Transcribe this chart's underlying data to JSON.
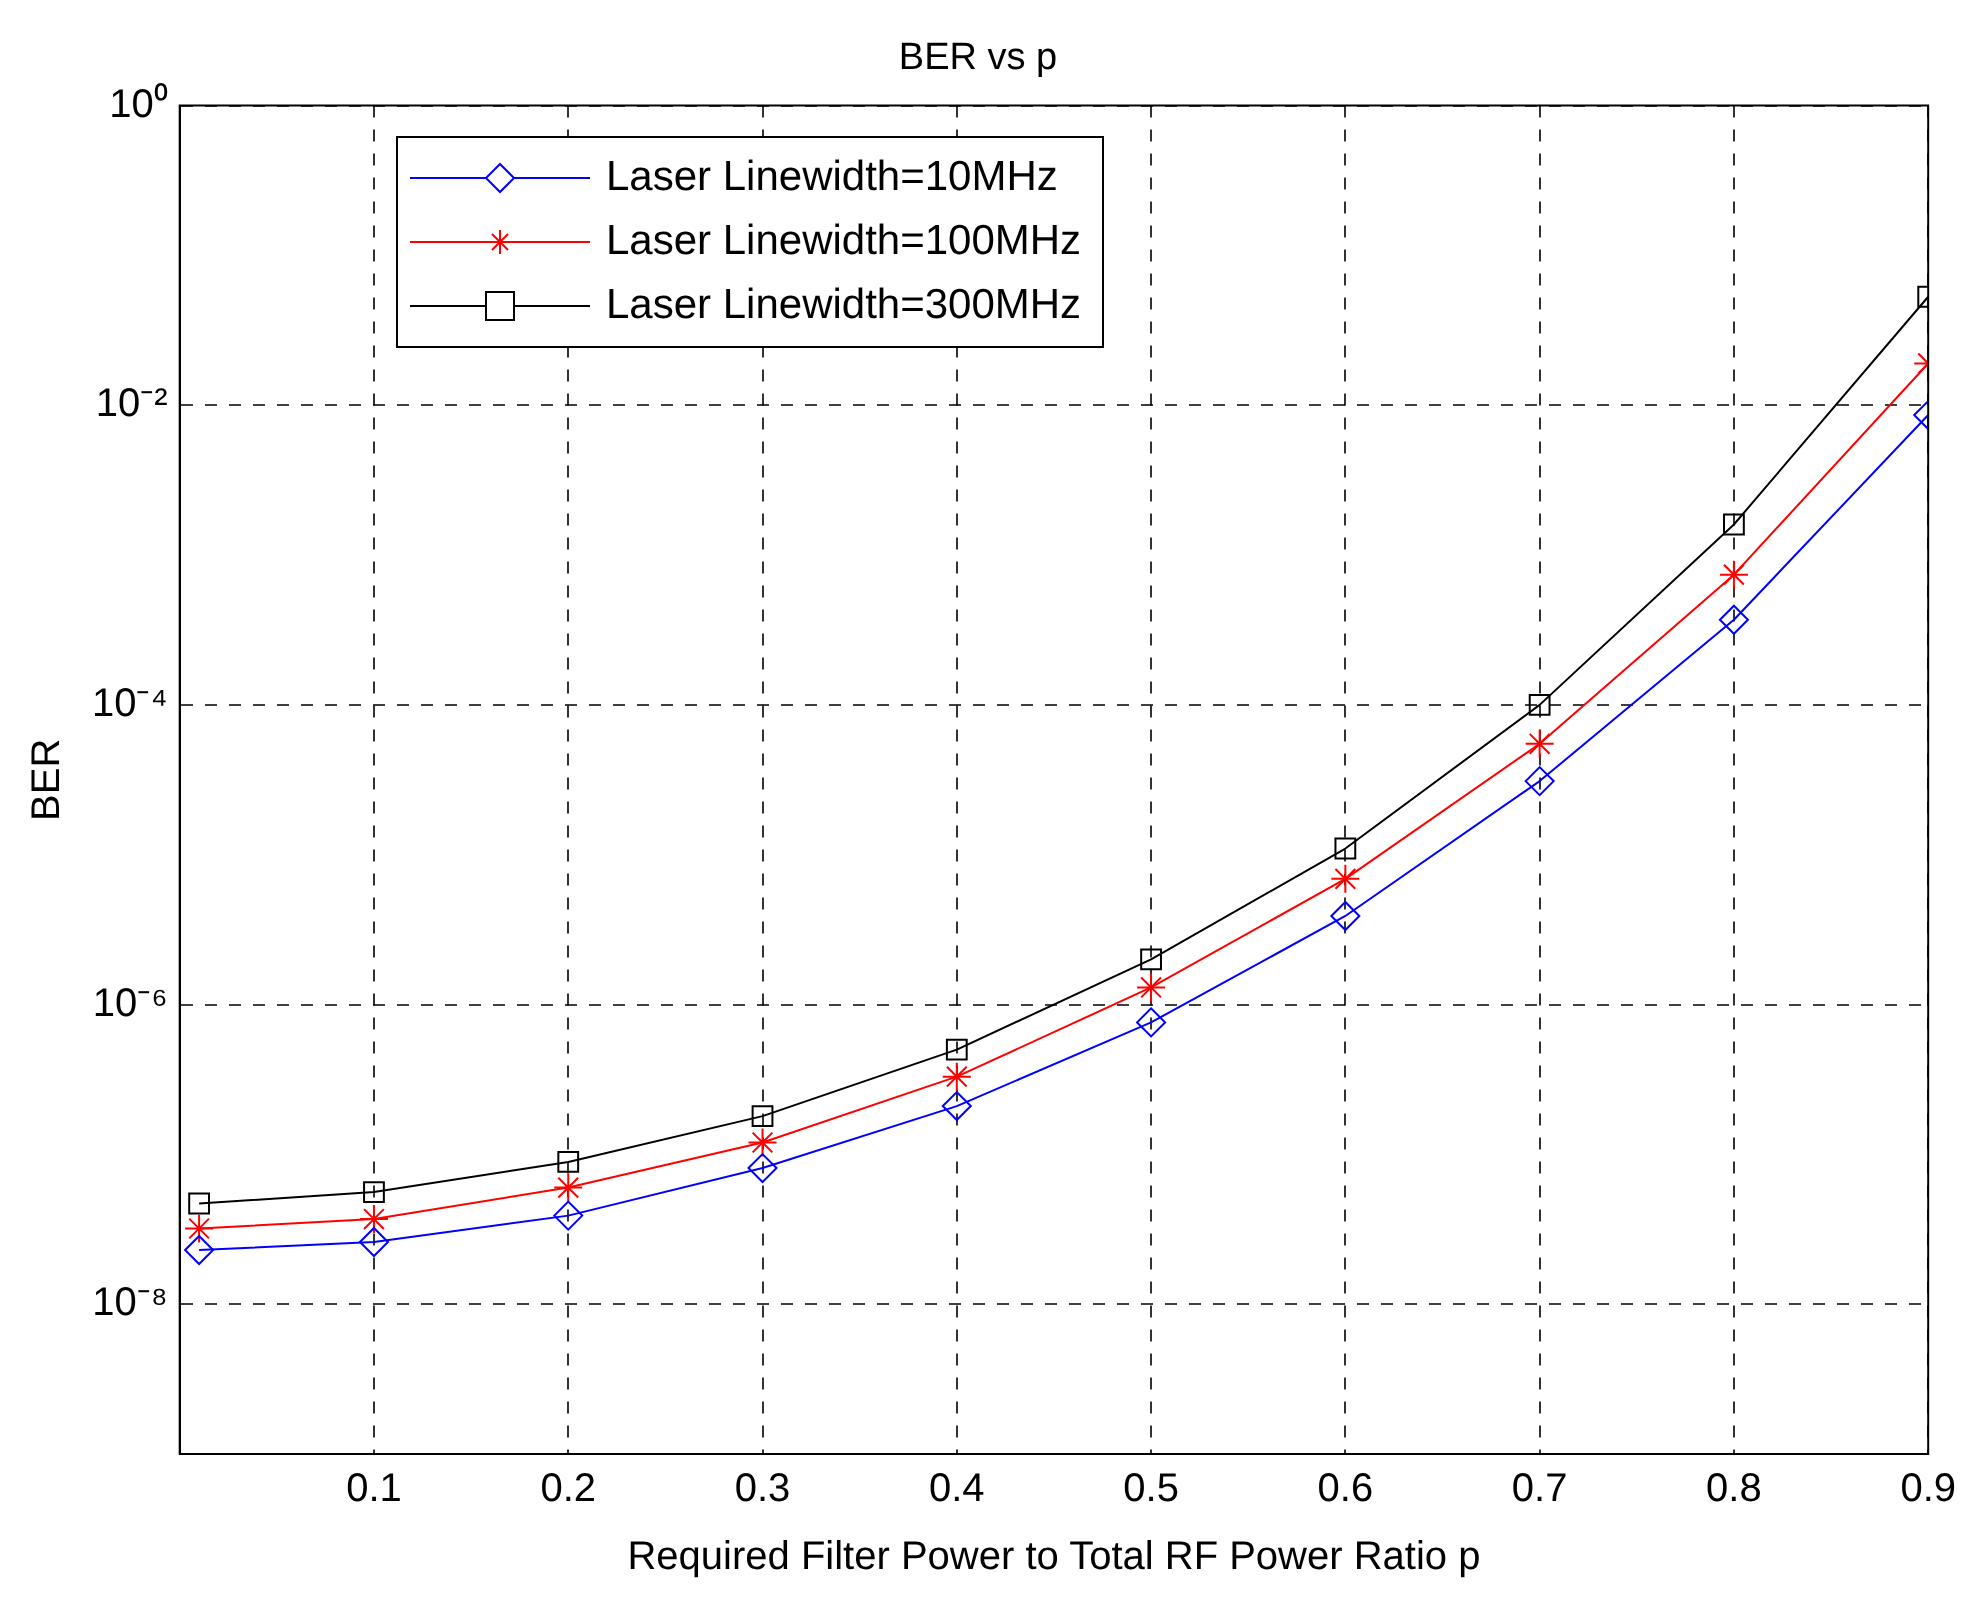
{
  "chart_data": {
    "type": "line",
    "title": "BER vs p",
    "xlabel": "Required Filter Power to Total RF Power Ratio p",
    "ylabel": "BER",
    "x": [
      0.01,
      0.1,
      0.2,
      0.3,
      0.4,
      0.5,
      0.6,
      0.7,
      0.8,
      0.9
    ],
    "series": [
      {
        "name": "Laser Linewidth=10MHz",
        "color": "#0000ff",
        "marker": "diamond",
        "values": [
          2.3e-08,
          2.6e-08,
          3.9e-08,
          8.1e-08,
          2.1e-07,
          7.6e-07,
          3.9e-06,
          3.1e-05,
          0.00037,
          0.0086
        ]
      },
      {
        "name": "Laser Linewidth=100MHz",
        "color": "#ff0000",
        "marker": "cross",
        "values": [
          3.2e-08,
          3.7e-08,
          6e-08,
          1.2e-07,
          3.3e-07,
          1.3e-06,
          6.9e-06,
          5.5e-05,
          0.00074,
          0.019
        ]
      },
      {
        "name": "Laser Linewidth=300MHz",
        "color": "#000000",
        "marker": "square",
        "values": [
          4.7e-08,
          5.6e-08,
          8.9e-08,
          1.8e-07,
          5e-07,
          2e-06,
          1.1e-05,
          0.0001,
          0.0016,
          0.053
        ]
      }
    ],
    "log": "y",
    "xlim": [
      0,
      0.9
    ],
    "xticks": [
      0.1,
      0.2,
      0.3,
      0.4,
      0.5,
      0.6,
      0.7,
      0.8,
      0.9
    ],
    "ylim": [
      1e-09,
      1
    ],
    "yticks": [
      {
        "value": 1e-08,
        "label": "10⁻⁸"
      },
      {
        "value": 1e-06,
        "label": "10⁻⁶"
      },
      {
        "value": 0.0001,
        "label": "10⁻⁴"
      },
      {
        "value": 0.01,
        "label": "10⁻²"
      },
      {
        "value": 1,
        "label": "10⁰"
      }
    ],
    "grid": true,
    "legend": "top left",
    "line_style": "solid"
  }
}
